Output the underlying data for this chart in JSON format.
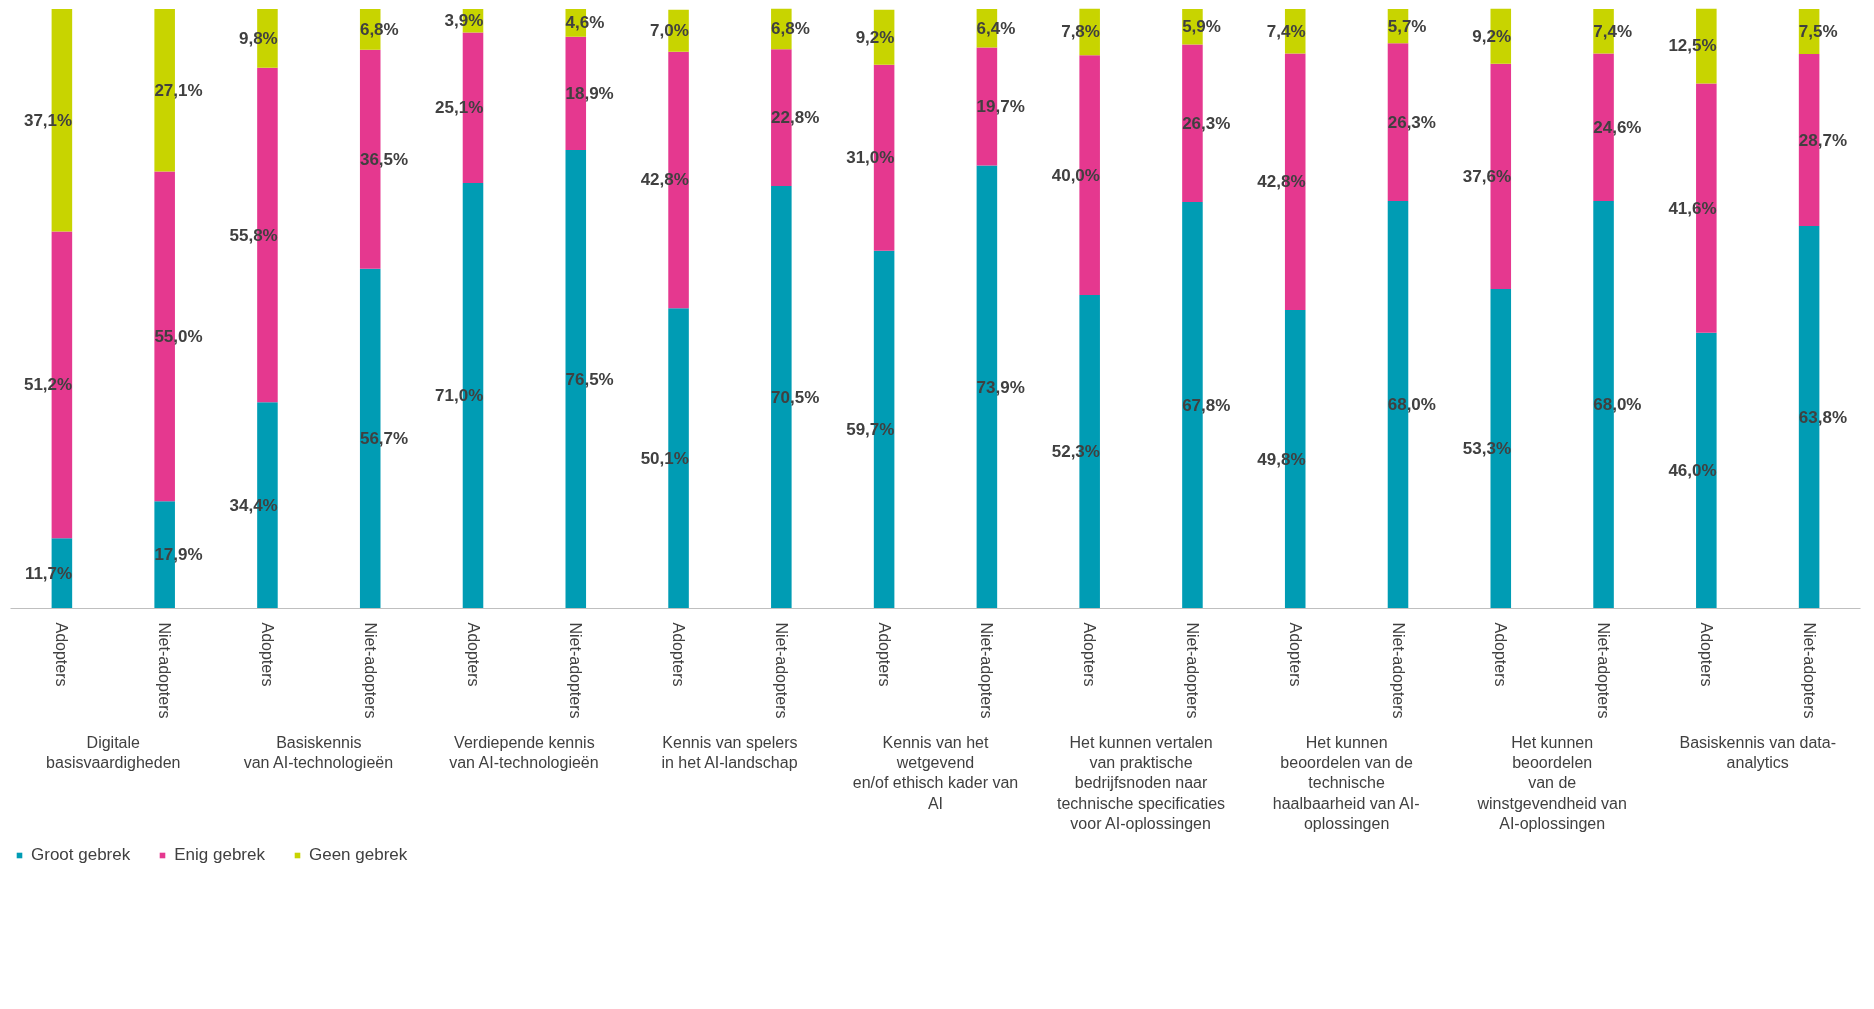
{
  "chart_data": {
    "type": "bar",
    "stacked": true,
    "legend": "bottom left",
    "tick_labels": "x",
    "categories": [
      "Adopters",
      "Niet-adopters",
      "Adopters",
      "Niet-adopters",
      "Adopters",
      "Niet-adopters",
      "Adopters",
      "Niet-adopters",
      "Adopters",
      "Niet-adopters",
      "Adopters",
      "Niet-adopters",
      "Adopters",
      "Niet-adopters",
      "Adopters",
      "Niet-adopters",
      "Adopters",
      "Niet-adopters"
    ],
    "annotations": [
      "Digitale\nbasisvaardigheden",
      "Basiskennis\nvan AI-technologieën",
      "Verdiepende kennis\nvan AI-technologieën",
      "Kennis van spelers\nin het AI-landschap",
      "Kennis van het\nwetgevend\nen/of ethisch kader van\nAI",
      "Het kunnen vertalen\nvan praktische\nbedrijfsnoden naar\ntechnische specificaties\nvoor AI-oplossingen",
      "Het kunnen\nbeoordelen van de\ntechnische\nhaalbaarheid van AI-\noplossingen",
      "Het kunnen\nbeoordelen\nvan de\nwinstgevendheid van\nAI-oplossingen",
      "Basiskennis van data-\nanalytics"
    ],
    "series": [
      {
        "name": "Groot gebrek",
        "color": "#009cb4",
        "values": [
          11.7,
          17.9,
          34.4,
          56.7,
          71.0,
          76.5,
          50.1,
          70.5,
          59.7,
          73.9,
          52.3,
          67.8,
          49.8,
          68.0,
          53.3,
          68.0,
          46.0,
          63.8
        ],
        "value_labels": [
          "11,7%",
          "17,9%",
          "34,4%",
          "56,7%",
          "71,0%",
          "76,5%",
          "50,1%",
          "70,5%",
          "59,7%",
          "73,9%",
          "52,3%",
          "67,8%",
          "49,8%",
          "68,0%",
          "53,3%",
          "68,0%",
          "46,0%",
          "63,8%"
        ]
      },
      {
        "name": "Enig gebrek",
        "color": "#e5388f",
        "values": [
          51.2,
          55.0,
          55.8,
          36.5,
          25.1,
          18.9,
          42.8,
          22.8,
          31.0,
          19.7,
          40.0,
          26.3,
          42.8,
          26.3,
          37.6,
          24.6,
          41.6,
          28.7
        ],
        "value_labels": [
          "51,2%",
          "55,0%",
          "55,8%",
          "36,5%",
          "25,1%",
          "18,9%",
          "42,8%",
          "22,8%",
          "31,0%",
          "19,7%",
          "40,0%",
          "26,3%",
          "42,8%",
          "26,3%",
          "37,6%",
          "24,6%",
          "41,6%",
          "28,7%"
        ]
      },
      {
        "name": "Geen gebrek",
        "color": "#c8d400",
        "values": [
          37.1,
          27.1,
          9.8,
          6.8,
          3.9,
          4.6,
          7.0,
          6.8,
          9.2,
          6.4,
          7.8,
          5.9,
          7.4,
          5.7,
          9.2,
          7.4,
          12.5,
          7.5
        ],
        "value_labels": [
          "37,1%",
          "27,1%",
          "9,8%",
          "6,8%",
          "3,9%",
          "4,6%",
          "7,0%",
          "6,8%",
          "9,2%",
          "6,4%",
          "7,8%",
          "5,9%",
          "7,4%",
          "5,7%",
          "9,2%",
          "7,4%",
          "12,5%",
          "7,5%"
        ]
      }
    ]
  }
}
